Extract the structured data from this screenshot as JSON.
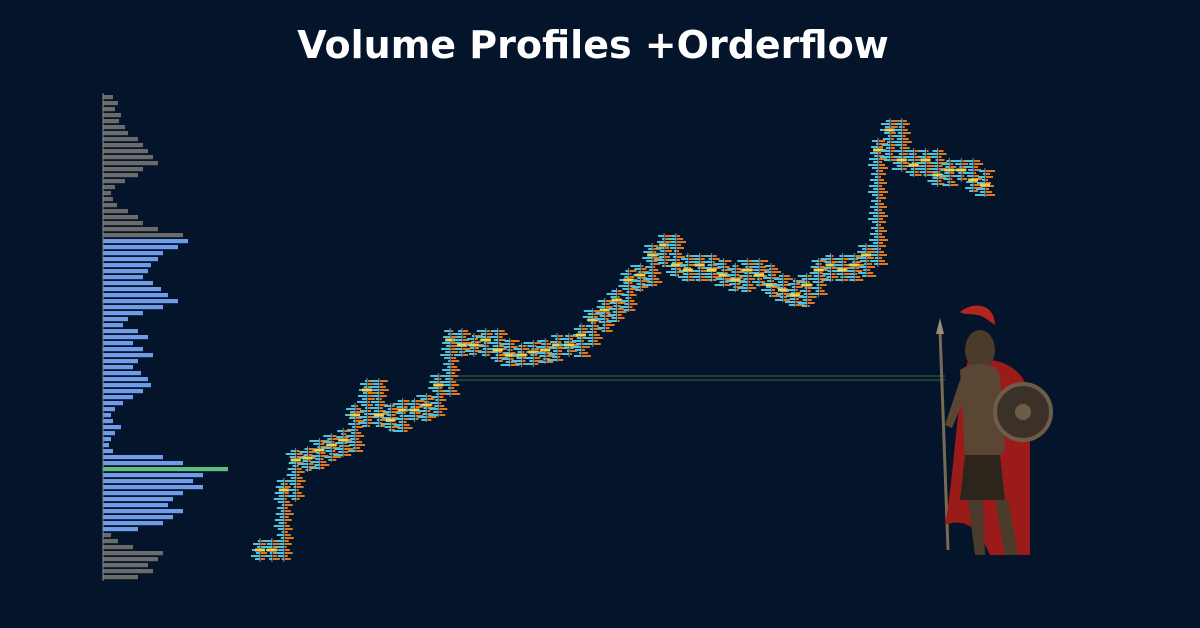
{
  "title": "Volume Profiles +Orderflow",
  "chart_data": [
    {
      "type": "volume-profile",
      "values": [
        10,
        15,
        12,
        18,
        16,
        22,
        25,
        35,
        40,
        45,
        50,
        55,
        40,
        35,
        22,
        12,
        8,
        10,
        14,
        25,
        35,
        40,
        55,
        80,
        85,
        75,
        60,
        55,
        48,
        45,
        40,
        50,
        58,
        65,
        75,
        60,
        40,
        25,
        20,
        35,
        45,
        30,
        40,
        50,
        35,
        30,
        38,
        45,
        48,
        40,
        30,
        20,
        12,
        8,
        10,
        18,
        12,
        8,
        6,
        10,
        60,
        80,
        125,
        100,
        90,
        100,
        80,
        70,
        65,
        80,
        70,
        60,
        35,
        8,
        15,
        30,
        60,
        55,
        45,
        50,
        35
      ],
      "colors": [
        "#6b6b6b",
        "#6b6b6b",
        "#6b6b6b",
        "#6b6b6b",
        "#6b6b6b",
        "#6b6b6b",
        "#6b6b6b",
        "#6b6b6b",
        "#6b6b6b",
        "#6b6b6b",
        "#6b6b6b",
        "#6b6b6b",
        "#6b6b6b",
        "#6b6b6b",
        "#6b6b6b",
        "#6b6b6b",
        "#6b6b6b",
        "#6b6b6b",
        "#6b6b6b",
        "#6b6b6b",
        "#6b6b6b",
        "#6b6b6b",
        "#6b6b6b",
        "#6b6b6b",
        "#6f9be8",
        "#6f9be8",
        "#6f9be8",
        "#6f9be8",
        "#6f9be8",
        "#6f9be8",
        "#6f9be8",
        "#6f9be8",
        "#6f9be8",
        "#6f9be8",
        "#6f9be8",
        "#6f9be8",
        "#6f9be8",
        "#6f9be8",
        "#6f9be8",
        "#6f9be8",
        "#6f9be8",
        "#6f9be8",
        "#6f9be8",
        "#6f9be8",
        "#6f9be8",
        "#6f9be8",
        "#6f9be8",
        "#6f9be8",
        "#6f9be8",
        "#6f9be8",
        "#6f9be8",
        "#6f9be8",
        "#6f9be8",
        "#6f9be8",
        "#6f9be8",
        "#6f9be8",
        "#6f9be8",
        "#6f9be8",
        "#6f9be8",
        "#6f9be8",
        "#6f9be8",
        "#6f9be8",
        "#5fbf7a",
        "#6f9be8",
        "#6f9be8",
        "#6f9be8",
        "#6f9be8",
        "#6f9be8",
        "#6f9be8",
        "#6f9be8",
        "#6f9be8",
        "#6f9be8",
        "#6f9be8",
        "#6b6b6b",
        "#6b6b6b",
        "#6b6b6b",
        "#6b6b6b",
        "#6b6b6b",
        "#6b6b6b",
        "#6b6b6b",
        "#6b6b6b"
      ]
    },
    {
      "type": "footprint",
      "values": [
        30,
        30,
        90,
        120,
        122,
        130,
        135,
        140,
        165,
        190,
        165,
        160,
        170,
        170,
        175,
        195,
        240,
        235,
        235,
        240,
        230,
        225,
        225,
        228,
        230,
        235,
        235,
        245,
        260,
        270,
        280,
        300,
        305,
        325,
        335,
        315,
        310,
        315,
        310,
        305,
        300,
        310,
        305,
        295,
        290,
        285,
        295,
        310,
        315,
        310,
        315,
        325,
        430,
        450,
        420,
        415,
        420,
        405,
        410,
        410,
        400,
        395
      ],
      "ylim": [
        0,
        490
      ],
      "colors": [
        "#4fc3d9",
        "#e0781e"
      ]
    }
  ]
}
